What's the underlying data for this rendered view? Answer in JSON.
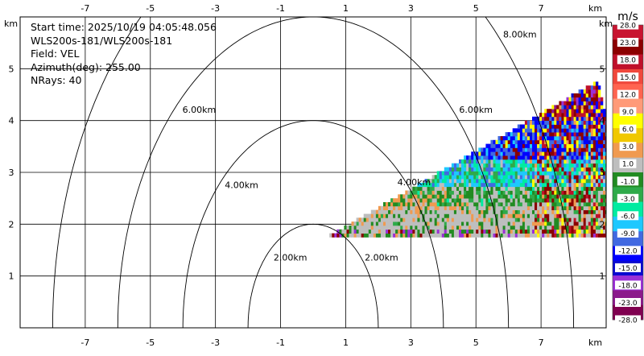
{
  "info": {
    "start_time": "Start time: 2025/10/19 04:05:48.056",
    "station": "WLS200s-181/WLS200s-181",
    "field": "Field: VEL",
    "azimuth": "Azimuth(deg): 255.00",
    "nrays": "NRays: 40"
  },
  "chart_data": {
    "type": "heatmap",
    "title": "",
    "xlabel": "km",
    "ylabel": "km",
    "xlim": [
      -9.0,
      9.0
    ],
    "ylim": [
      0,
      6.0
    ],
    "x_ticks": [
      -7,
      -5,
      -3,
      -1,
      1,
      3,
      5,
      7
    ],
    "y_ticks": [
      1,
      2,
      3,
      4,
      5
    ],
    "grid": true,
    "range_rings": [
      {
        "label": "2.00km",
        "radius_km": 2
      },
      {
        "label": "4.00km",
        "radius_km": 4
      },
      {
        "label": "6.00km",
        "radius_km": 6
      },
      {
        "label": "8.00km",
        "radius_km": 8
      }
    ],
    "sector": {
      "origin_km": [
        0.5,
        1.75
      ],
      "start_range_km": 0.0,
      "end_range_km": 8.75,
      "elevation_start_deg": 0.0,
      "elevation_end_deg": 20.0
    },
    "colorbar": {
      "unit": "m/s",
      "labels": [
        "28.0",
        "23.0",
        "18.0",
        "15.0",
        "12.0",
        "9.0",
        "6.0",
        "3.0",
        "1.0",
        "-1.0",
        "-3.0",
        "-6.0",
        "-9.0",
        "-12.0",
        "-15.0",
        "-18.0",
        "-23.0",
        "-28.0"
      ],
      "colors": [
        "#c81430",
        "#8b0000",
        "#c0102a",
        "#f0483c",
        "#ff6450",
        "#ff9a78",
        "#ffff00",
        "#f0c800",
        "#f09a50",
        "#bebebe",
        "#228b22",
        "#2faa4a",
        "#00eba0",
        "#1ec8ff",
        "#4169e1",
        "#0000ff",
        "#0a0ad0",
        "#9b30d6",
        "#8b1a8b",
        "#800050"
      ]
    }
  }
}
